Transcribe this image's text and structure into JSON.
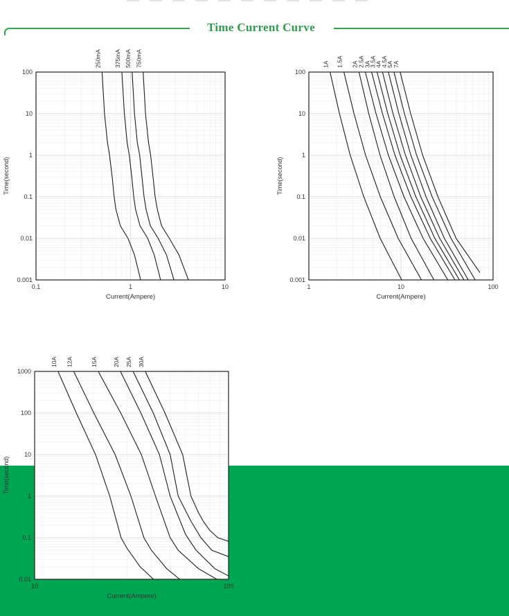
{
  "header": {
    "title": "Time Current Curve"
  },
  "colors": {
    "accent_green": "#2d9e4e",
    "line_green": "#2aa84f",
    "band_green": "#00a551",
    "curve": "#1b1b1b",
    "grid_minor": "#ececec",
    "grid_major": "#d8d8d8",
    "tick_text": "#333333",
    "plot_border": "#222222"
  },
  "chart_data": [
    {
      "id": "low-range",
      "type": "line",
      "title": "",
      "xlabel": "Current(Ampere)",
      "ylabel": "Time(second)",
      "x_log": true,
      "y_log": true,
      "xlim": [
        0.1,
        10
      ],
      "ylim": [
        0.001,
        100
      ],
      "x_ticks": [
        "0.1",
        "1",
        "10"
      ],
      "y_ticks": [
        "100",
        "10",
        "1",
        "0.1",
        "0.01",
        "0.001"
      ],
      "legend_position": "rotated-top-labels",
      "grid": true,
      "series": [
        {
          "name": "250mA",
          "points": [
            [
              0.5,
              100
            ],
            [
              0.53,
              10
            ],
            [
              0.57,
              2
            ],
            [
              0.6,
              1
            ],
            [
              0.64,
              0.3
            ],
            [
              0.67,
              0.1
            ],
            [
              0.7,
              0.05
            ],
            [
              0.78,
              0.02
            ],
            [
              0.94,
              0.01
            ],
            [
              1.1,
              0.004
            ],
            [
              1.28,
              0.001
            ]
          ]
        },
        {
          "name": "375mA",
          "points": [
            [
              0.81,
              100
            ],
            [
              0.86,
              10
            ],
            [
              0.92,
              2
            ],
            [
              0.97,
              1
            ],
            [
              1.03,
              0.3
            ],
            [
              1.08,
              0.1
            ],
            [
              1.13,
              0.05
            ],
            [
              1.26,
              0.02
            ],
            [
              1.52,
              0.01
            ],
            [
              1.78,
              0.004
            ],
            [
              2.08,
              0.001
            ]
          ]
        },
        {
          "name": "500mA",
          "points": [
            [
              1.04,
              100
            ],
            [
              1.1,
              10
            ],
            [
              1.18,
              2
            ],
            [
              1.25,
              1
            ],
            [
              1.32,
              0.3
            ],
            [
              1.39,
              0.1
            ],
            [
              1.46,
              0.05
            ],
            [
              1.62,
              0.02
            ],
            [
              1.96,
              0.01
            ],
            [
              2.4,
              0.004
            ],
            [
              2.88,
              0.001
            ]
          ]
        },
        {
          "name": "750mA",
          "points": [
            [
              1.36,
              100
            ],
            [
              1.44,
              10
            ],
            [
              1.55,
              2
            ],
            [
              1.63,
              1
            ],
            [
              1.73,
              0.3
            ],
            [
              1.82,
              0.1
            ],
            [
              1.92,
              0.05
            ],
            [
              2.13,
              0.02
            ],
            [
              2.57,
              0.01
            ],
            [
              3.25,
              0.004
            ],
            [
              4.1,
              0.001
            ]
          ]
        }
      ]
    },
    {
      "id": "mid-range",
      "type": "line",
      "title": "",
      "xlabel": "Current(Ampere)",
      "ylabel": "Time(second)",
      "x_log": true,
      "y_log": true,
      "xlim": [
        1,
        100
      ],
      "ylim": [
        0.001,
        100
      ],
      "x_ticks": [
        "1",
        "10",
        "100"
      ],
      "y_ticks": [
        "100",
        "10",
        "1",
        "0.1",
        "0.01",
        "0.001"
      ],
      "legend_position": "rotated-top-labels",
      "grid": true,
      "series": [
        {
          "name": "1A",
          "points": [
            [
              1.7,
              100
            ],
            [
              2.15,
              10
            ],
            [
              2.81,
              1
            ],
            [
              3.95,
              0.1
            ],
            [
              5.95,
              0.01
            ],
            [
              10.2,
              0.001
            ]
          ]
        },
        {
          "name": "1.5A",
          "points": [
            [
              2.4,
              100
            ],
            [
              3.09,
              10
            ],
            [
              4.13,
              1
            ],
            [
              5.97,
              0.1
            ],
            [
              9.33,
              0.01
            ],
            [
              16.7,
              0.001
            ]
          ]
        },
        {
          "name": "2A",
          "points": [
            [
              3.5,
              100
            ],
            [
              4.47,
              10
            ],
            [
              5.93,
              1
            ],
            [
              8.44,
              0.1
            ],
            [
              12.9,
              0.01
            ],
            [
              22.8,
              0.001
            ]
          ]
        },
        {
          "name": "2.5A",
          "points": [
            [
              4.1,
              100
            ],
            [
              5.36,
              10
            ],
            [
              7.3,
              1
            ],
            [
              10.8,
              0.1
            ],
            [
              17.4,
              0.01
            ],
            [
              32.3,
              0.001
            ]
          ]
        },
        {
          "name": "3A",
          "points": [
            [
              4.8,
              100
            ],
            [
              6.3,
              10
            ],
            [
              8.6,
              1
            ],
            [
              12.8,
              0.1
            ],
            [
              20.8,
              0.01
            ],
            [
              38.6,
              0.001
            ]
          ]
        },
        {
          "name": "3.5A",
          "points": [
            [
              5.5,
              100
            ],
            [
              7.2,
              10
            ],
            [
              9.8,
              1
            ],
            [
              14.5,
              0.1
            ],
            [
              23.3,
              0.01
            ],
            [
              43.1,
              0.001
            ]
          ]
        },
        {
          "name": "4A",
          "points": [
            [
              6.3,
              100
            ],
            [
              8.2,
              10
            ],
            [
              11.2,
              1
            ],
            [
              16.4,
              0.1
            ],
            [
              26.3,
              0.01
            ],
            [
              48.3,
              0.001
            ]
          ]
        },
        {
          "name": "4.5A",
          "points": [
            [
              7.3,
              100
            ],
            [
              9.5,
              10
            ],
            [
              12.8,
              1
            ],
            [
              18.7,
              0.1
            ],
            [
              29.6,
              0.01
            ],
            [
              53.8,
              0.001
            ]
          ]
        },
        {
          "name": "5A",
          "points": [
            [
              8.4,
              100
            ],
            [
              10.9,
              10
            ],
            [
              14.8,
              1
            ],
            [
              21.8,
              0.1
            ],
            [
              34.9,
              0.01
            ],
            [
              64,
              0.001
            ]
          ]
        },
        {
          "name": "7A",
          "points": [
            [
              9.8,
              100
            ],
            [
              12.75,
              10
            ],
            [
              17.2,
              1
            ],
            [
              25.2,
              0.1
            ],
            [
              39.7,
              0.01
            ],
            [
              58,
              0.003
            ],
            [
              72,
              0.0015
            ]
          ]
        }
      ]
    },
    {
      "id": "high-range",
      "type": "line",
      "title": "",
      "xlabel": "Current(Ampere)",
      "ylabel": "Time(second)",
      "x_log": true,
      "y_log": true,
      "xlim": [
        10,
        100
      ],
      "ylim": [
        0.01,
        1000
      ],
      "x_ticks": [
        "10",
        "100"
      ],
      "y_ticks": [
        "1000",
        "100",
        "10",
        "1",
        "0.1",
        "0.01"
      ],
      "legend_position": "rotated-top-labels",
      "grid": true,
      "series": [
        {
          "name": "10A",
          "points": [
            [
              13.2,
              1000
            ],
            [
              16.4,
              100
            ],
            [
              20.6,
              10
            ],
            [
              24.4,
              1
            ],
            [
              27.9,
              0.1
            ],
            [
              30,
              0.055
            ],
            [
              35,
              0.02
            ],
            [
              41,
              0.01
            ]
          ]
        },
        {
          "name": "12A",
          "points": [
            [
              15.9,
              1000
            ],
            [
              20.2,
              100
            ],
            [
              26,
              10
            ],
            [
              31.4,
              1
            ],
            [
              36.6,
              0.1
            ],
            [
              40,
              0.05
            ],
            [
              48,
              0.018
            ],
            [
              56,
              0.01
            ]
          ]
        },
        {
          "name": "15A",
          "points": [
            [
              21.3,
              1000
            ],
            [
              27.8,
              100
            ],
            [
              35.5,
              10
            ],
            [
              42,
              1
            ],
            [
              50,
              0.1
            ],
            [
              55,
              0.05
            ],
            [
              70,
              0.018
            ],
            [
              87,
              0.01
            ]
          ]
        },
        {
          "name": "20A",
          "points": [
            [
              27.7,
              1000
            ],
            [
              35.3,
              100
            ],
            [
              44,
              10
            ],
            [
              50,
              1
            ],
            [
              60,
              0.12
            ],
            [
              68,
              0.05
            ],
            [
              85,
              0.018
            ],
            [
              100,
              0.012
            ]
          ]
        },
        {
          "name": "25A",
          "points": [
            [
              32.2,
              1000
            ],
            [
              40.9,
              100
            ],
            [
              50,
              10
            ],
            [
              55,
              1
            ],
            [
              64,
              0.25
            ],
            [
              72,
              0.1
            ],
            [
              82,
              0.05
            ],
            [
              100,
              0.035
            ]
          ]
        },
        {
          "name": "30A",
          "points": [
            [
              37.2,
              1000
            ],
            [
              47,
              100
            ],
            [
              58,
              10
            ],
            [
              64,
              1
            ],
            [
              70,
              0.4
            ],
            [
              74,
              0.25
            ],
            [
              80,
              0.15
            ],
            [
              88,
              0.1
            ],
            [
              100,
              0.082
            ]
          ]
        }
      ]
    }
  ]
}
